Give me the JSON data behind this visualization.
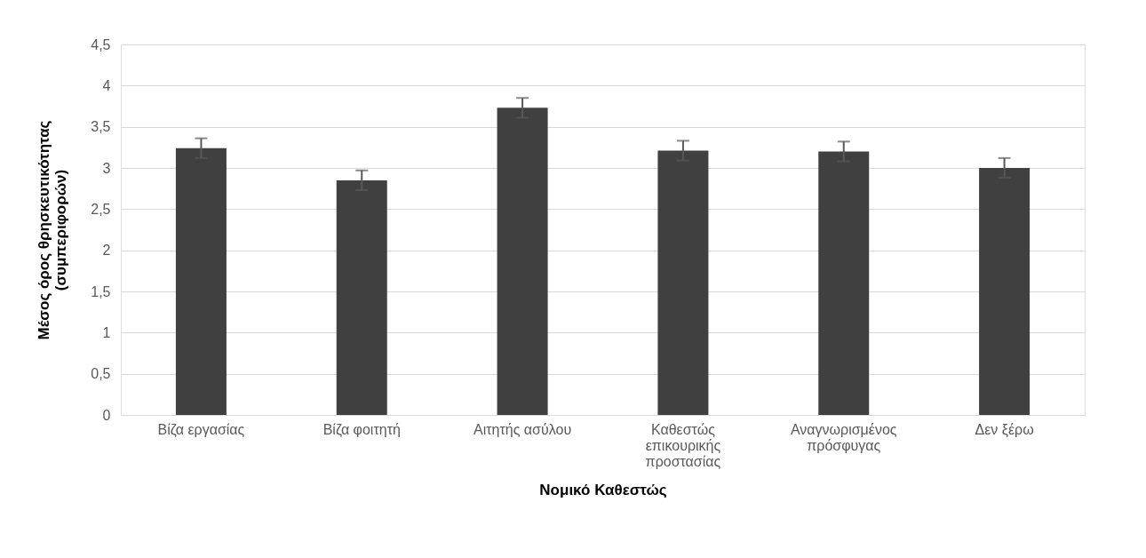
{
  "chart_data": {
    "type": "bar",
    "xlabel": "Νομικό Καθεστώς",
    "ylabel": "Μέσος όρος θρησκευτικότητας (συμπεριφορών)",
    "categories": [
      "Βίζα εργασίας",
      "Βίζα φοιτητή",
      "Αιτητής ασύλου",
      "Καθεστώς επικουρικής προστασίας",
      "Αναγνωρισμένος πρόσφυγας",
      "Δεν ξέρω"
    ],
    "values": [
      3.24,
      2.85,
      3.73,
      3.21,
      3.2,
      3.0
    ],
    "errors": [
      0.12,
      0.12,
      0.12,
      0.12,
      0.12,
      0.12
    ],
    "color": "#404040",
    "ylim": [
      0,
      4.5
    ],
    "yticks": [
      0,
      {
        "value": 0.5,
        "label": "0,5"
      },
      1,
      {
        "value": 1.5,
        "label": "1,5"
      },
      2,
      {
        "value": 2.5,
        "label": "2,5"
      },
      3,
      {
        "value": 3.5,
        "label": "3,5"
      },
      4,
      {
        "value": 4.5,
        "label": "4,5"
      }
    ],
    "grid": "y"
  }
}
